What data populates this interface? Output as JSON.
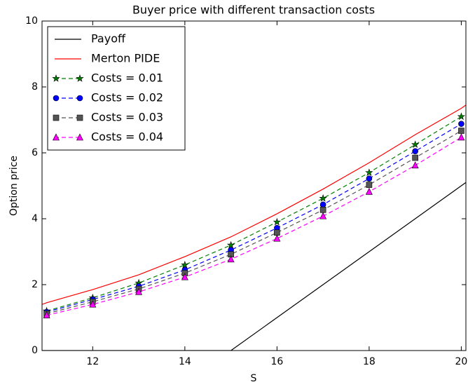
{
  "chart_data": {
    "type": "line",
    "title": "Buyer price with different transaction costs",
    "xlabel": "S",
    "ylabel": "Option price",
    "xlim": [
      10.9,
      20.1
    ],
    "xticks": [
      12,
      14,
      16,
      18,
      20
    ],
    "ylim": [
      0,
      10
    ],
    "yticks": [
      0,
      2,
      4,
      6,
      8,
      10
    ],
    "legend": "upper left",
    "series": [
      {
        "name": "Payoff",
        "color": "#000000",
        "linestyle": "solid",
        "x": [
          10.9,
          15,
          20.1
        ],
        "values": [
          0,
          0,
          5.1
        ]
      },
      {
        "name": "Merton PIDE",
        "color": "#ff0000",
        "linestyle": "solid",
        "x": [
          10.9,
          11,
          12,
          13,
          14,
          15,
          16,
          17,
          18,
          19,
          20,
          20.1
        ],
        "values": [
          1.4,
          1.45,
          1.85,
          2.3,
          2.85,
          3.45,
          4.15,
          4.9,
          5.7,
          6.55,
          7.35,
          7.45
        ]
      },
      {
        "name": "Costs = 0.01",
        "color": "#008000",
        "linestyle": "dashed",
        "marker": "star",
        "x": [
          11,
          12,
          13,
          14,
          15,
          16,
          17,
          18,
          19,
          20
        ],
        "values": [
          1.2,
          1.6,
          2.05,
          2.6,
          3.2,
          3.9,
          4.62,
          5.4,
          6.25,
          7.1
        ]
      },
      {
        "name": "Costs = 0.02",
        "color": "#0000ff",
        "linestyle": "dashed",
        "marker": "circle",
        "x": [
          11,
          12,
          13,
          14,
          15,
          16,
          17,
          18,
          19,
          20
        ],
        "values": [
          1.17,
          1.55,
          1.95,
          2.45,
          3.05,
          3.72,
          4.43,
          5.22,
          6.05,
          6.88
        ]
      },
      {
        "name": "Costs = 0.03",
        "color": "#555555",
        "linestyle": "dashed",
        "marker": "square",
        "x": [
          11,
          12,
          13,
          14,
          15,
          16,
          17,
          18,
          19,
          20
        ],
        "values": [
          1.12,
          1.48,
          1.87,
          2.35,
          2.92,
          3.58,
          4.27,
          5.03,
          5.85,
          6.67
        ]
      },
      {
        "name": "Costs = 0.04",
        "color": "#ff00ff",
        "linestyle": "dashed",
        "marker": "triangle",
        "x": [
          11,
          12,
          13,
          14,
          15,
          16,
          17,
          18,
          19,
          20
        ],
        "values": [
          1.07,
          1.4,
          1.78,
          2.23,
          2.77,
          3.4,
          4.08,
          4.82,
          5.62,
          6.47
        ]
      }
    ]
  }
}
